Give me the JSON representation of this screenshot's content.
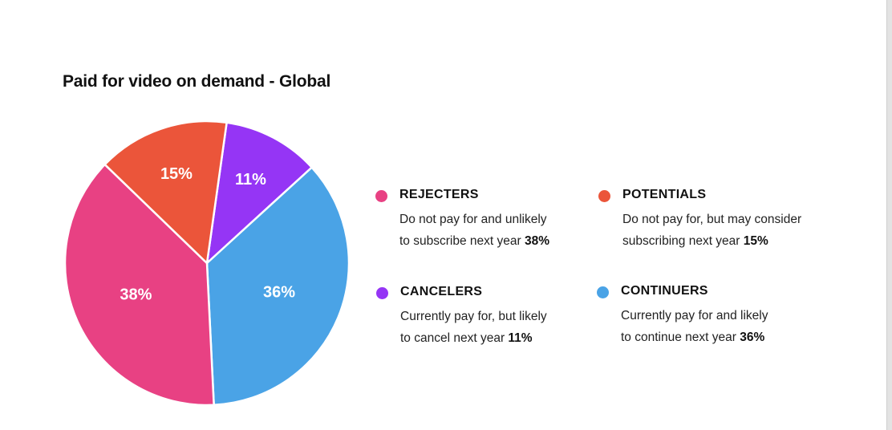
{
  "chart_data": {
    "type": "pie",
    "title": "Paid for video on demand - Global",
    "slices": [
      {
        "name": "REJECTERS",
        "value": 38,
        "label": "38%",
        "color": "#E84183",
        "desc_line1": "Do not pay for and unlikely",
        "desc_line2": "to subscribe next year",
        "desc_value": "38%"
      },
      {
        "name": "POTENTIALS",
        "value": 15,
        "label": "15%",
        "color": "#EB553A",
        "desc_line1": "Do not pay for, but may consider",
        "desc_line2": "subscribing next year",
        "desc_value": "15%"
      },
      {
        "name": "CANCELERS",
        "value": 11,
        "label": "11%",
        "color": "#9535F5",
        "desc_line1": "Currently pay for, but likely",
        "desc_line2": "to cancel next year",
        "desc_value": "11%"
      },
      {
        "name": "CONTINUERS",
        "value": 36,
        "label": "36%",
        "color": "#4AA3E6",
        "desc_line1": "Currently pay for and likely",
        "desc_line2": "to continue next year",
        "desc_value": "36%"
      }
    ],
    "legend_placement": "right"
  }
}
